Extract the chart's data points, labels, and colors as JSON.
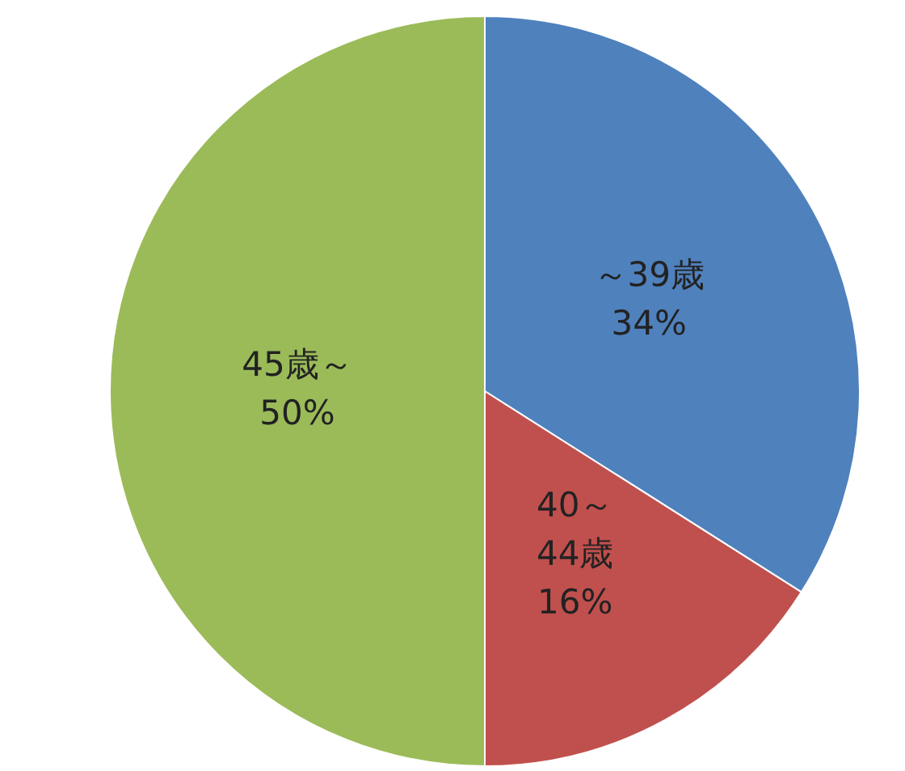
{
  "chart_data": {
    "type": "pie",
    "categories": [
      "～39歳",
      "40～44歳",
      "45歳～"
    ],
    "values": [
      34,
      16,
      50
    ],
    "colors": [
      "#4f81bd",
      "#c0504d",
      "#9bbb59"
    ],
    "value_labels": [
      "34%",
      "16%",
      "50%"
    ]
  }
}
